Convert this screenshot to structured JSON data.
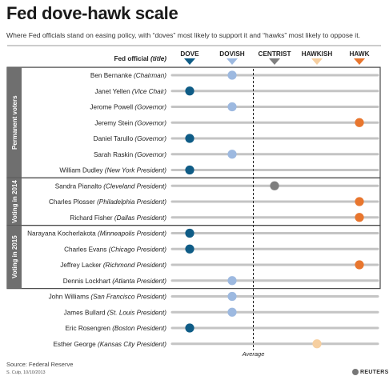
{
  "header": {
    "title": "Fed dove-hawk scale",
    "subtitle": "Where Fed officials stand on easing policy, with “doves” most likely to support it and “hawks” most likely to oppose it."
  },
  "footer": {
    "source": "Source: Federal Reserve",
    "credit": "S. Culp, 10/10/2013",
    "logo": "REUTERS"
  },
  "chart_data": {
    "type": "scatter",
    "title": "Fed dove-hawk scale",
    "column_label": "Fed official",
    "column_label_suffix": "(title)",
    "scale": [
      "DOVE",
      "DOVISH",
      "CENTRIST",
      "HAWKISH",
      "HAWK"
    ],
    "scale_colors": [
      "#0f5c86",
      "#9db9e0",
      "#7f7f7f",
      "#f6cfa0",
      "#e8762e"
    ],
    "average_label": "Average",
    "average_position": 1.5,
    "grid": false,
    "groups": [
      {
        "label": "Permanent voters",
        "start": 0,
        "end": 6
      },
      {
        "label": "Voting in 2014",
        "start": 7,
        "end": 9
      },
      {
        "label": "Voting in 2015",
        "start": 10,
        "end": 13
      }
    ],
    "officials": [
      {
        "name": "Ben Bernanke",
        "title": "(Chairman)",
        "value": 1
      },
      {
        "name": "Janet Yellen",
        "title": "(Vice Chair)",
        "value": 0
      },
      {
        "name": "Jerome Powell",
        "title": "(Governor)",
        "value": 1
      },
      {
        "name": "Jeremy Stein",
        "title": "(Governor)",
        "value": 4
      },
      {
        "name": "Daniel Tarullo",
        "title": "(Governor)",
        "value": 0
      },
      {
        "name": "Sarah Raskin",
        "title": "(Governor)",
        "value": 1
      },
      {
        "name": "William Dudley",
        "title": "(New York President)",
        "value": 0
      },
      {
        "name": "Sandra Pianalto",
        "title": "(Cleveland President)",
        "value": 2
      },
      {
        "name": "Charles Plosser",
        "title": "(Philadelphia President)",
        "value": 4
      },
      {
        "name": "Richard Fisher",
        "title": "(Dallas President)",
        "value": 4
      },
      {
        "name": "Narayana Kocherlakota",
        "title": "(Minneapolis President)",
        "value": 0
      },
      {
        "name": "Charles Evans",
        "title": "(Chicago President)",
        "value": 0
      },
      {
        "name": "Jeffrey Lacker",
        "title": "(Richmond President)",
        "value": 4
      },
      {
        "name": "Dennis Lockhart",
        "title": "(Atlanta President)",
        "value": 1
      },
      {
        "name": "John Williams",
        "title": "(San Francisco President)",
        "value": 1
      },
      {
        "name": "James Bullard",
        "title": "(St. Louis President)",
        "value": 1
      },
      {
        "name": "Eric Rosengren",
        "title": "(Boston President)",
        "value": 0
      },
      {
        "name": "Esther George",
        "title": "(Kansas City President)",
        "value": 3
      }
    ]
  }
}
